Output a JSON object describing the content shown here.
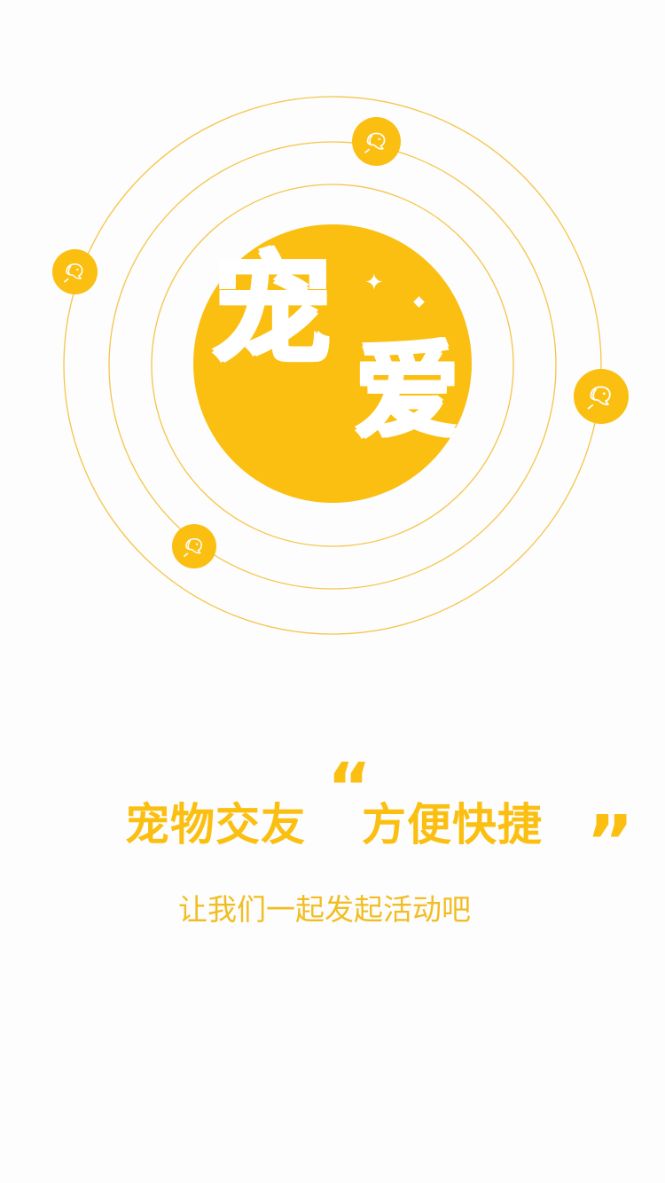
{
  "hero": {
    "logo_char_1": "宠",
    "logo_char_2": "爱",
    "sparkle_1": "✦",
    "center_color": "#fbbf12",
    "orbit_color": "#f5c54a",
    "badge_icon": "dog-head-icon",
    "badges": [
      {
        "name": "pet-badge-top",
        "icon": "dog-head-icon"
      },
      {
        "name": "pet-badge-left",
        "icon": "dog-head-icon"
      },
      {
        "name": "pet-badge-right",
        "icon": "dog-head-icon"
      },
      {
        "name": "pet-badge-bottom-left",
        "icon": "dog-head-icon"
      }
    ]
  },
  "headline": {
    "left_text": "宠物交友",
    "open_quote": "“",
    "right_text": "方便快捷",
    "close_quote": "”"
  },
  "subtitle": "让我们一起发起活动吧"
}
